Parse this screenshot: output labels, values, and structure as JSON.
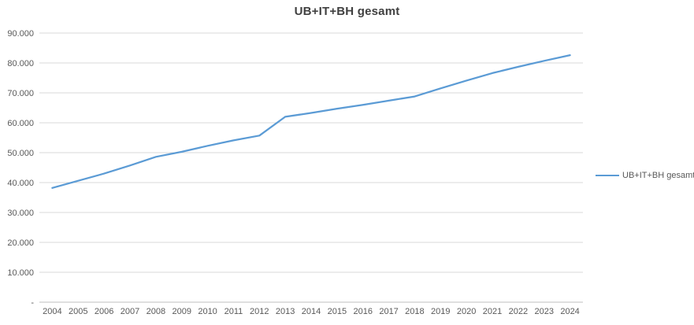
{
  "chart_data": {
    "type": "line",
    "title": "UB+IT+BH gesamt",
    "categories": [
      "2004",
      "2005",
      "2006",
      "2007",
      "2008",
      "2009",
      "2010",
      "2011",
      "2012",
      "2013",
      "2014",
      "2015",
      "2016",
      "2017",
      "2018",
      "2019",
      "2020",
      "2021",
      "2022",
      "2023",
      "2024"
    ],
    "series": [
      {
        "name": "UB+IT+BH gesamt",
        "color": "#5B9BD5",
        "values": [
          38200,
          40600,
          43000,
          45700,
          48600,
          50300,
          52300,
          54100,
          55700,
          62000,
          63300,
          64700,
          66000,
          67400,
          68800,
          71500,
          74100,
          76600,
          78700,
          80700,
          82600
        ]
      }
    ],
    "xlabel": "",
    "ylabel": "",
    "ylim": [
      0,
      90000
    ],
    "ytick_interval": 10000,
    "ytick_labels": [
      "-",
      "10.000",
      "20.000",
      "30.000",
      "40.000",
      "50.000",
      "60.000",
      "70.000",
      "80.000",
      "90.000"
    ],
    "grid": "horizontal",
    "legend_position": "right",
    "colors": {
      "series_line": "#5B9BD5",
      "gridline": "#D9D9D9",
      "axis_line": "#BFBFBF",
      "tick_text": "#595959",
      "title_text": "#404040",
      "legend_text": "#595959",
      "background": "#FFFFFF"
    }
  }
}
